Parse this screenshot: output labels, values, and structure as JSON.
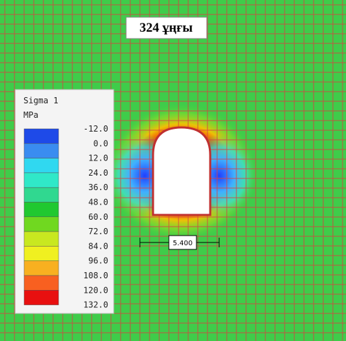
{
  "title": "324 ұңғы",
  "legend": {
    "title": "Sigma 1",
    "unit": "MPa",
    "labels": [
      "-12.0",
      "0.0",
      "12.0",
      "24.0",
      "36.0",
      "48.0",
      "60.0",
      "72.0",
      "84.0",
      "96.0",
      "108.0",
      "120.0",
      "132.0"
    ]
  },
  "dimension": "5.400"
}
